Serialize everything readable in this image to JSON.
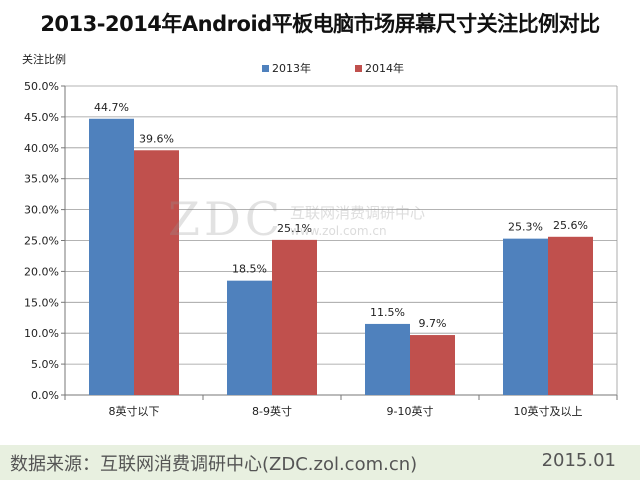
{
  "chart_data": {
    "type": "bar",
    "title": "2013-2014年Android平板电脑市场屏幕尺寸关注比例对比",
    "ylabel": "关注比例",
    "xlabel": "",
    "categories": [
      "8英寸以下",
      "8-9英寸",
      "9-10英寸",
      "10英寸及以上"
    ],
    "series": [
      {
        "name": "2013年",
        "color": "#4f81bd",
        "values": [
          44.7,
          18.5,
          11.5,
          25.3
        ]
      },
      {
        "name": "2014年",
        "color": "#c0504d",
        "values": [
          39.6,
          25.1,
          9.7,
          25.6
        ]
      }
    ],
    "ylim": [
      0,
      50
    ],
    "yticks": [
      "0.0%",
      "5.0%",
      "10.0%",
      "15.0%",
      "20.0%",
      "25.0%",
      "30.0%",
      "35.0%",
      "40.0%",
      "45.0%",
      "50.0%"
    ],
    "data_labels": [
      [
        "44.7%",
        "18.5%",
        "11.5%",
        "25.3%"
      ],
      [
        "39.6%",
        "25.1%",
        "9.7%",
        "25.6%"
      ]
    ],
    "grid": "horizontal",
    "legend_position": "top-center"
  },
  "watermark": {
    "logo": "ZDC",
    "org": "互联网消费调研中心",
    "url": "www.zol.com.cn"
  },
  "footer": {
    "source": "数据来源：互联网消费调研中心(ZDC.zol.com.cn)",
    "date": "2015.01"
  }
}
